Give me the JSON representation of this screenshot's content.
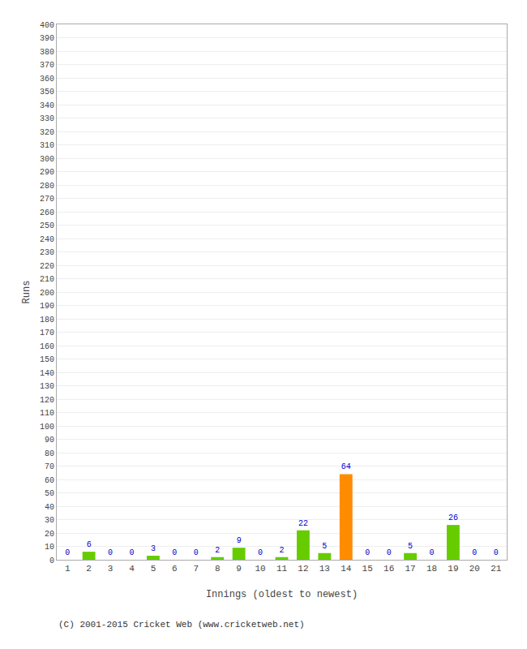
{
  "chart_data": {
    "type": "bar",
    "xlabel": "Innings (oldest to newest)",
    "ylabel": "Runs",
    "annotations": [
      "(C) 2001-2015 Cricket Web (www.cricketweb.net)"
    ],
    "x": [
      1,
      2,
      3,
      4,
      5,
      6,
      7,
      8,
      9,
      10,
      11,
      12,
      13,
      14,
      15,
      16,
      17,
      18,
      19,
      20,
      21
    ],
    "values": [
      0,
      6,
      0,
      0,
      3,
      0,
      0,
      2,
      9,
      0,
      2,
      22,
      5,
      64,
      0,
      0,
      5,
      0,
      26,
      0,
      0
    ],
    "colors": [
      "#66cc00",
      "#66cc00",
      "#66cc00",
      "#66cc00",
      "#66cc00",
      "#66cc00",
      "#66cc00",
      "#66cc00",
      "#66cc00",
      "#66cc00",
      "#66cc00",
      "#66cc00",
      "#66cc00",
      "#ff8c00",
      "#66cc00",
      "#66cc00",
      "#66cc00",
      "#66cc00",
      "#66cc00",
      "#66cc00",
      "#66cc00"
    ],
    "xlim": [
      0.5,
      21.5
    ],
    "xticks": [
      1,
      2,
      3,
      4,
      5,
      6,
      7,
      8,
      9,
      10,
      11,
      12,
      13,
      14,
      15,
      16,
      17,
      18,
      19,
      20,
      21
    ],
    "ylim": [
      0,
      400
    ],
    "yticks": [
      0,
      10,
      20,
      30,
      40,
      50,
      60,
      70,
      80,
      90,
      100,
      110,
      120,
      130,
      140,
      150,
      160,
      170,
      180,
      190,
      200,
      210,
      220,
      230,
      240,
      250,
      260,
      270,
      280,
      290,
      300,
      310,
      320,
      330,
      340,
      350,
      360,
      370,
      380,
      390,
      400
    ],
    "grid": "y",
    "data_labels": true
  }
}
